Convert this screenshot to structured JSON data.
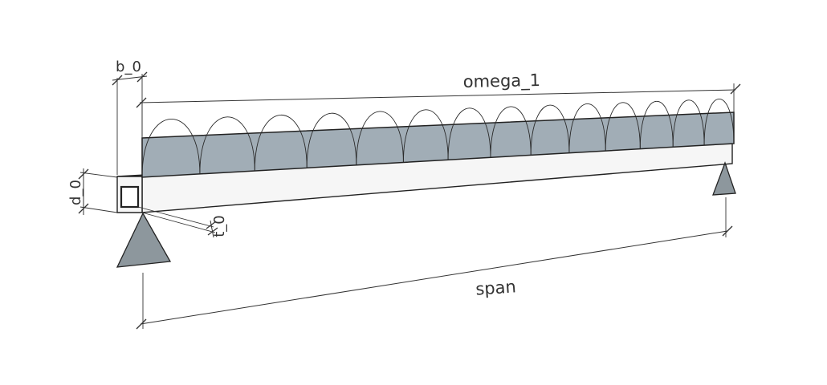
{
  "labels": {
    "omega": "omega_1",
    "span": "span",
    "width": "b_0",
    "depth": "d_0",
    "thickness": "t_0"
  },
  "colors": {
    "load": "#a1adb6",
    "beam_face": "#f6f6f6",
    "beam_top": "#e9e9e9",
    "support": "#8d979d",
    "line": "#333333"
  },
  "load": {
    "arch_count": 14
  }
}
